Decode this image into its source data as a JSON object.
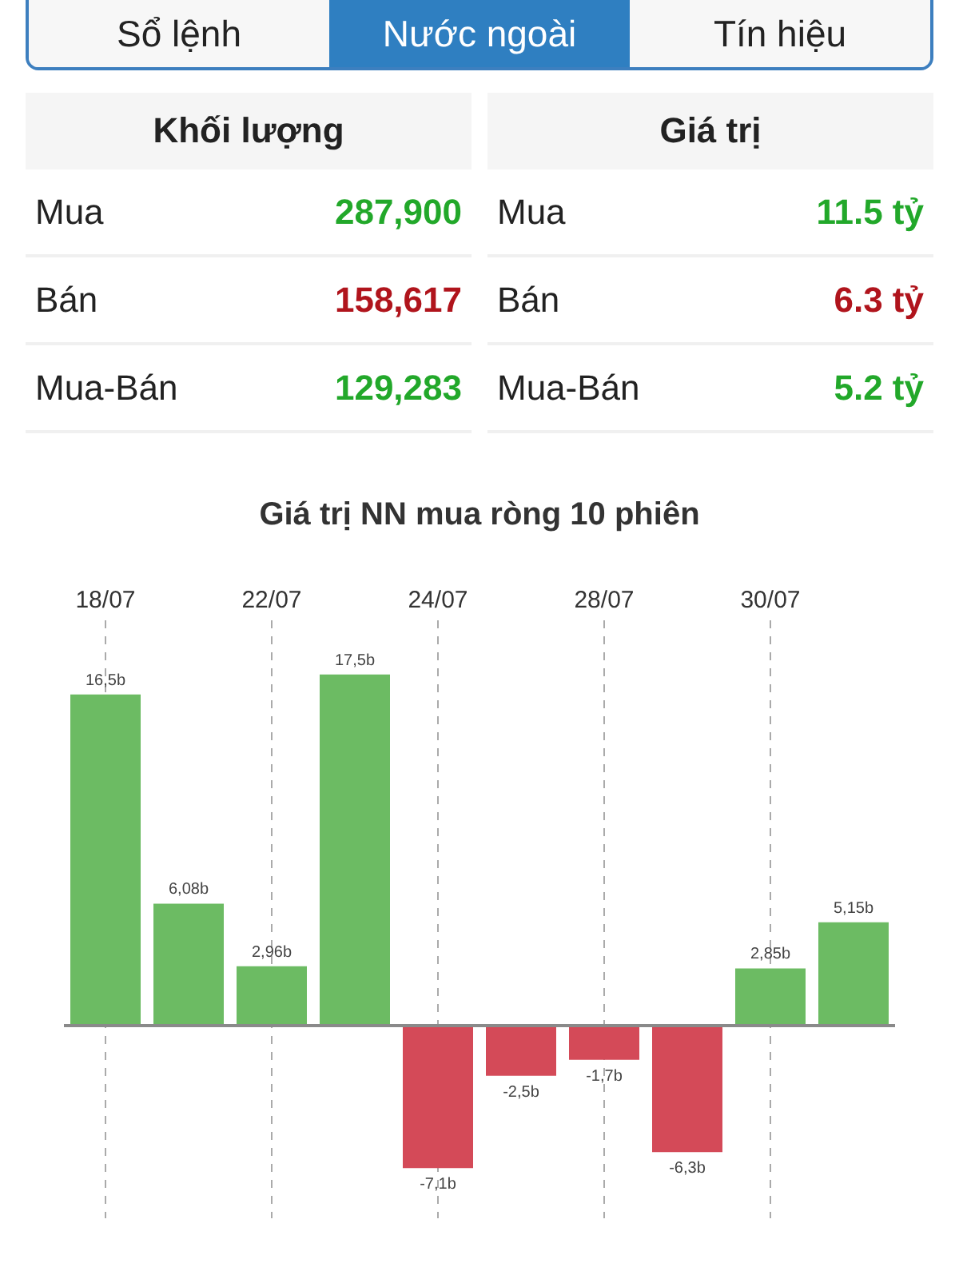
{
  "chart_data": [
    {
      "type": "other",
      "annotations": [
        "Sổ lệnh",
        "Nước ngoài",
        "Tín hiệu",
        "Khối lượng",
        "Giá trị",
        "Mua",
        "287,900",
        "Bán",
        "158,617",
        "Mua-Bán",
        "129,283",
        "Mua",
        "11.5 tỷ",
        "Bán",
        "6.3 tỷ",
        "Mua-Bán",
        "5.2 tỷ"
      ]
    },
    {
      "type": "bar",
      "title": "Giá trị NN mua ròng 10 phiên",
      "categories": [
        "18/07",
        null,
        "22/07",
        null,
        "24/07",
        null,
        "28/07",
        null,
        "30/07",
        null
      ],
      "values": [
        16.5,
        6.08,
        2.96,
        17.5,
        -7.1,
        -2.5,
        -1.7,
        -6.3,
        2.85,
        5.15
      ],
      "value_labels": [
        "16,5b",
        "6,08b",
        "2,96b",
        "17,5b",
        "-7,1b",
        "-2,5b",
        "-1,7b",
        "-6,3b",
        "2,85b",
        "5,15b"
      ],
      "colors": [
        "#6cbb63",
        "#6cbb63",
        "#6cbb63",
        "#6cbb63",
        "#d44a58",
        "#d44a58",
        "#d44a58",
        "#d44a58",
        "#6cbb63",
        "#6cbb63"
      ],
      "ylim": [
        -9.6,
        20.2
      ],
      "grid": "x",
      "tick_labels": "x",
      "ref_lines": [
        {
          "axis": "y",
          "value": 0,
          "color": "#8a8a8a"
        }
      ]
    }
  ]
}
